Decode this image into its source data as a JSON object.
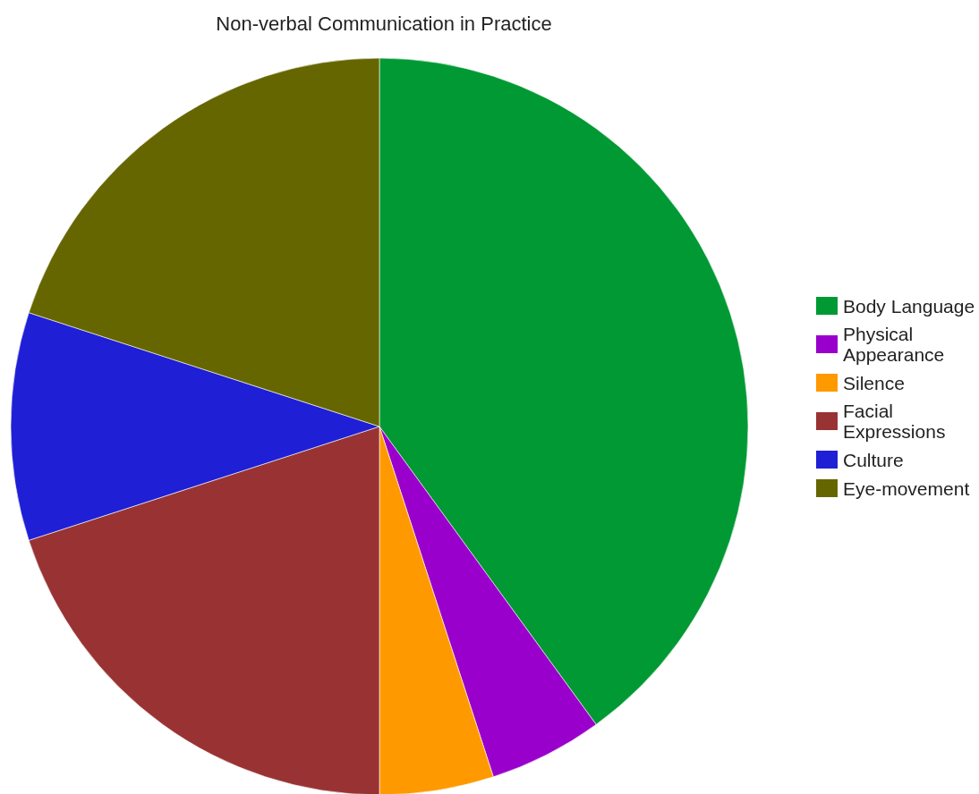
{
  "chart_data": {
    "type": "pie",
    "title": "Non-verbal Communication in Practice",
    "categories": [
      "Body Language",
      "Physical Appearance",
      "Silence",
      "Facial Expressions",
      "Culture",
      "Eye-movement"
    ],
    "values": [
      40,
      5,
      5,
      20,
      10,
      20
    ],
    "colors": [
      "#009933",
      "#9900cc",
      "#ff9900",
      "#993333",
      "#1f1fd6",
      "#666600"
    ],
    "legend": "right"
  }
}
